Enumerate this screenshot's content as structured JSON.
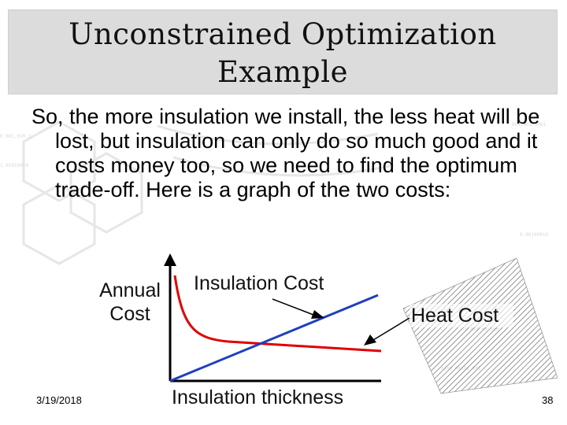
{
  "slide": {
    "title_line1": "Unconstrained Optimization",
    "title_line2": "Example",
    "body": "So, the more insulation we install, the less heat will be lost, but insulation can only do so much good and it costs money too, so we need to find the optimum trade-off. Here is a graph of the two costs:",
    "date": "3/19/2018",
    "page_number": "38"
  },
  "chart_data": {
    "type": "line",
    "title": "",
    "xlabel": "Insulation thickness",
    "ylabel": "Annual Cost",
    "series": [
      {
        "name": "Insulation Cost",
        "color": "#1f3fbf",
        "shape": "linear-increasing"
      },
      {
        "name": "Heat Cost",
        "color": "#e00000",
        "shape": "decreasing-hyperbolic"
      }
    ],
    "annotations": [
      "Insulation Cost",
      "Heat Cost"
    ]
  },
  "colors": {
    "title_band": "#dcdcdc",
    "axis": "#000000",
    "insulation_line": "#1f3fbf",
    "heat_line": "#e00000"
  }
}
